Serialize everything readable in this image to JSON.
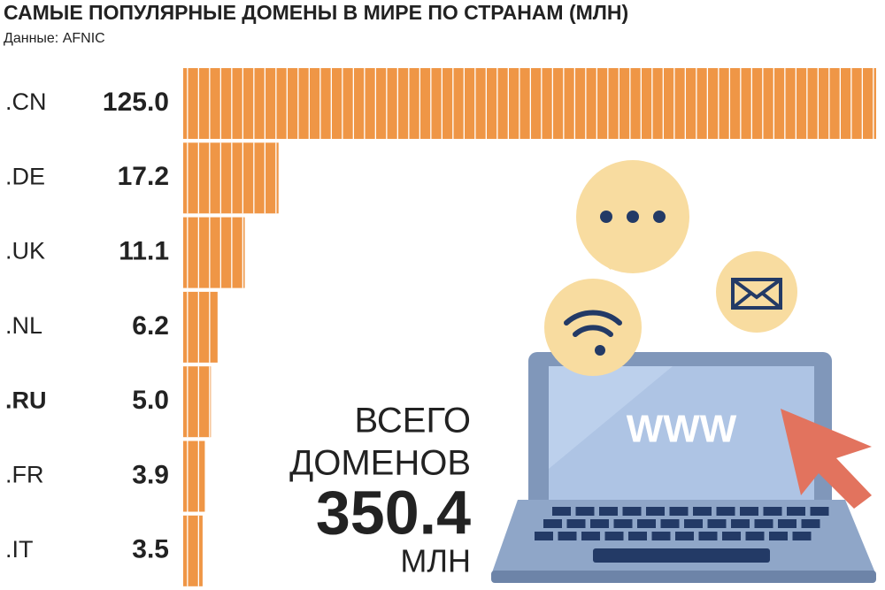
{
  "chart_data": {
    "type": "bar",
    "title": "САМЫЕ ПОПУЛЯРНЫЕ ДОМЕНЫ В МИРЕ ПО СТРАНАМ (МЛН)",
    "source": "Данные: AFNIC",
    "categories": [
      ".CN",
      ".DE",
      ".UK",
      ".NL",
      ".RU",
      ".FR",
      ".IT"
    ],
    "values": [
      125,
      17.2,
      11.1,
      6.2,
      5,
      3.9,
      3.5
    ],
    "value_labels": [
      "125.0",
      "17.2",
      "11.1",
      "6.2",
      "5.0",
      "3.9",
      "3.5"
    ],
    "color": "#ef9646",
    "highlight": 4,
    "total_label_1": "ВСЕГО",
    "total_label_2": "ДОМЕНОВ",
    "total": 350.4,
    "total_unit": "МЛН",
    "screen_text": "WWW"
  }
}
